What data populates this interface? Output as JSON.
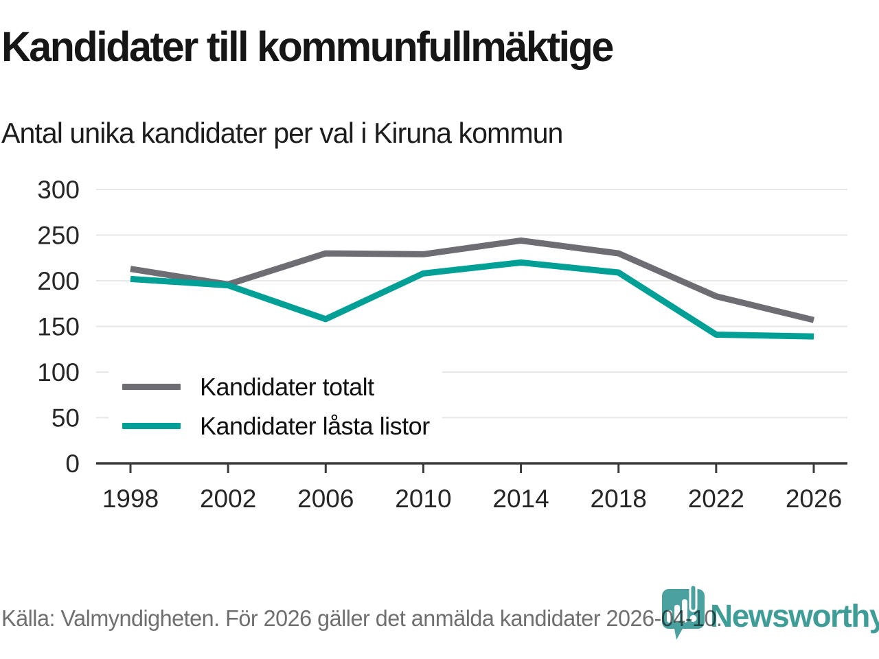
{
  "header": {
    "title": "Kandidater till kommunfullmäktige",
    "subtitle": "Antal unika kandidater per val i Kiruna kommun"
  },
  "chart_data": {
    "type": "line",
    "title": "Kandidater till kommunfullmäktige",
    "subtitle": "Antal unika kandidater per val i Kiruna kommun",
    "categories": [
      "1998",
      "2002",
      "2006",
      "2010",
      "2014",
      "2018",
      "2022",
      "2026"
    ],
    "series": [
      {
        "name": "Kandidater totalt",
        "color": "#6d6d73",
        "values": [
          213,
          196,
          230,
          229,
          244,
          230,
          183,
          157
        ]
      },
      {
        "name": "Kandidater låsta listor",
        "color": "#00a096",
        "values": [
          202,
          195,
          158,
          208,
          220,
          209,
          141,
          139
        ]
      }
    ],
    "xlabel": "",
    "ylabel": "",
    "ylim": [
      0,
      300
    ],
    "yticks": [
      0,
      50,
      100,
      150,
      200,
      250,
      300
    ],
    "grid": "horizontal",
    "legend_position": "inside-bottom-left",
    "axis_color": "#3b3b3b",
    "gridline_color": "#e7e7e7",
    "tick_label_color": "#262626"
  },
  "footer": {
    "source": "Källa: Valmyndigheten. För 2026 gäller det anmälda kandidater 2026-04-10.",
    "logo_text": "Newsworthy",
    "logo_color": "#3f9d98",
    "logo_bubble_color": "#4ba1a0"
  }
}
